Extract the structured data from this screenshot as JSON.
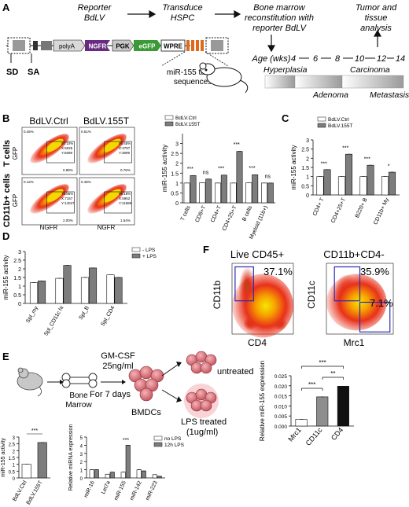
{
  "figure": {
    "panel_labels": [
      "A",
      "B",
      "C",
      "D",
      "E",
      "F"
    ],
    "timeline": {
      "step1": [
        "Reporter",
        "BdLV"
      ],
      "step2": [
        "Transduce",
        "HSPC"
      ],
      "step3": [
        "Bone marrow",
        "reconstitution with",
        "reporter BdLV"
      ],
      "step4": [
        "Tumor and",
        "tissue",
        "analysis"
      ],
      "age_label": "Age (wks)",
      "ages": [
        "4",
        "6",
        "8",
        "10",
        "12",
        "14"
      ],
      "stages_top": [
        "Hyperplasia",
        "Carcinoma"
      ],
      "stages_bottom": [
        "Adenoma",
        "Metastasis"
      ]
    },
    "vector": {
      "elements": [
        "polyA",
        "NGFR",
        "PGK",
        "eGFP",
        "WPRE"
      ],
      "sd": "SD",
      "sa": "SA",
      "target_label": [
        "miR-155 target",
        "sequences"
      ]
    },
    "panel_b": {
      "col_titles": [
        "BdLV.Ctrl",
        "BdLV.155T"
      ],
      "row_titles": [
        "T cells",
        "CD11b+ cells"
      ],
      "flow_x": "NGFR",
      "flow_y": "GFP",
      "flow_stats": [
        [
          "0.45%",
          "97.10%",
          "X:5025",
          "Y:6699",
          "0.98%"
        ],
        [
          "0.51%",
          "95.45%",
          "X:3797",
          "Y:3999",
          "0.76%"
        ],
        [
          "0.12%",
          "78.86%",
          "X:7157",
          "Y:14027",
          "2.00%"
        ],
        [
          "0.48%",
          "98.18%",
          "X:5952",
          "Y:11688",
          "1.54%"
        ]
      ]
    },
    "panel_e": {
      "gmcsf": [
        "GM-CSF",
        "25ng/ml"
      ],
      "days": "For 7 days",
      "bone_marrow": [
        "Bone",
        "Marrow"
      ],
      "bmdcs": "BMDCs",
      "untreated": "untreated",
      "lps_treated": [
        "LPS treated",
        "(1ug/ml)"
      ]
    },
    "panel_f": {
      "plot1_title": "Live CD45+",
      "plot2_title": "CD11b+CD4-",
      "plot1_x": "CD4",
      "plot1_y": "CD11b",
      "plot2_x": "Mrc1",
      "plot2_y": "CD11c",
      "gate1": "37.1%",
      "gate2": "35.9%",
      "gate3": "7.1%"
    }
  },
  "chart_data": [
    {
      "id": "B-bar",
      "type": "bar",
      "ylabel": "miR-155 activity",
      "ylim": [
        0,
        3.5
      ],
      "yticks": [
        0,
        0.5,
        1,
        1.5,
        2,
        2.5,
        3
      ],
      "categories": [
        "T cells",
        "CD8+T",
        "CD4+T",
        "CD4+25+T",
        "B cells",
        "Myeloid (11b+)"
      ],
      "series": [
        {
          "name": "BdLV.Ctrl",
          "values": [
            1.0,
            1.02,
            1.0,
            1.0,
            1.02,
            1.0
          ]
        },
        {
          "name": "BdLV.155T",
          "values": [
            1.38,
            1.2,
            1.4,
            2.6,
            1.42,
            1.0
          ]
        }
      ],
      "significance": [
        "***",
        "ns",
        "***",
        "***",
        "***",
        "ns"
      ]
    },
    {
      "id": "C-bar",
      "type": "bar",
      "ylabel": "miR-155 activity",
      "ylim": [
        0,
        3
      ],
      "yticks": [
        0,
        0.5,
        1,
        1.5,
        2,
        2.5,
        3
      ],
      "categories": [
        "CD4+ T",
        "CD4+25+T",
        "B220+ B",
        "CD11b+ My"
      ],
      "series": [
        {
          "name": "BdLV.Ctrl",
          "values": [
            1.0,
            1.0,
            1.0,
            1.0
          ]
        },
        {
          "name": "BdLV.155T",
          "values": [
            1.38,
            2.22,
            1.62,
            1.24
          ]
        }
      ],
      "significance": [
        "***",
        "***",
        "***",
        "*"
      ]
    },
    {
      "id": "D-bar",
      "type": "bar",
      "ylabel": "miR-155 activity",
      "ylim": [
        0,
        3
      ],
      "yticks": [
        0,
        0.5,
        1,
        1.5,
        2,
        2.5,
        3
      ],
      "categories": [
        "Spl_my",
        "Spl_CD11c hi",
        "Spl_B",
        "Spl_CD4"
      ],
      "series": [
        {
          "name": "- LPS",
          "values": [
            1.2,
            1.45,
            1.5,
            1.65
          ]
        },
        {
          "name": "+ LPS",
          "values": [
            1.3,
            2.2,
            2.05,
            1.5
          ]
        }
      ]
    },
    {
      "id": "E-bar1",
      "type": "bar",
      "ylabel": "miR-155 activity",
      "ylim": [
        0,
        3
      ],
      "yticks": [
        0,
        0.5,
        1,
        1.5,
        2,
        2.5,
        3
      ],
      "categories": [
        "BdLV.Ctrl",
        "BdLV.155T"
      ],
      "values": [
        1.0,
        2.6
      ],
      "significance": [
        "***"
      ]
    },
    {
      "id": "E-bar2",
      "type": "bar",
      "ylabel": "Relative miRNA expression",
      "ylim": [
        0,
        5
      ],
      "yticks": [
        0,
        1,
        2,
        3,
        4,
        5
      ],
      "categories": [
        "miR-16",
        "Let7a",
        "miR-155",
        "miR-142",
        "miR-223"
      ],
      "series": [
        {
          "name": "no LPS",
          "values": [
            1.0,
            0.45,
            0.7,
            1.0,
            0.4
          ]
        },
        {
          "name": "12h LPS",
          "values": [
            1.0,
            0.7,
            4.0,
            0.85,
            0.2
          ]
        }
      ],
      "significance": [
        "",
        "",
        "***",
        "",
        ""
      ]
    },
    {
      "id": "F-bar",
      "type": "bar",
      "ylabel": "Relative miR-155 expression",
      "ylim": [
        0,
        0.025
      ],
      "yticks": [
        0.0,
        0.005,
        0.01,
        0.015,
        0.02,
        0.025
      ],
      "ytick_labels": [
        "0.000",
        "0.005",
        "0.010",
        "0.015",
        "0.020",
        "0.025"
      ],
      "categories": [
        "Mrc1",
        "CD11c",
        "CD4"
      ],
      "values": [
        0.0033,
        0.0145,
        0.0198
      ],
      "significance": [
        "***",
        "***",
        "**"
      ]
    }
  ]
}
